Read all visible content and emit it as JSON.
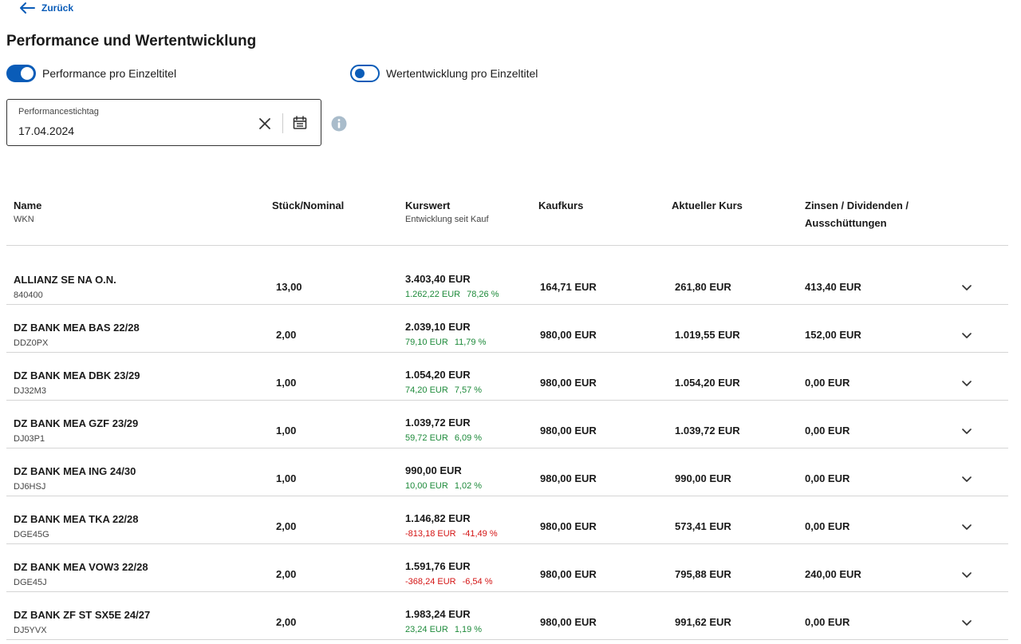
{
  "nav": {
    "back_label": "Zurück"
  },
  "page_title": "Performance und Wertentwicklung",
  "toggles": [
    {
      "label": "Performance pro Einzeltitel",
      "state": "on"
    },
    {
      "label": "Wertentwicklung pro Einzeltitel",
      "state": "off"
    }
  ],
  "date_field": {
    "label": "Performancestichtag",
    "value": "17.04.2024"
  },
  "icons": {
    "back": "arrow-left-icon",
    "clear": "close-icon",
    "calendar": "calendar-icon",
    "info": "info-icon",
    "expand": "chevron-down-icon"
  },
  "colors": {
    "accent": "#0a5cb8",
    "positive": "#1d8a3a",
    "negative": "#d41414",
    "info": "#a9bccb"
  },
  "table": {
    "headers": {
      "name": "Name",
      "name_sub": "WKN",
      "qty": "Stück/Nominal",
      "kurswert": "Kurswert",
      "kurswert_sub": "Entwicklung seit Kauf",
      "kaufkurs": "Kaufkurs",
      "aktueller_kurs": "Aktueller Kurs",
      "zinsen_line1": "Zinsen / Dividenden /",
      "zinsen_line2": "Ausschüttungen"
    },
    "rows": [
      {
        "name": "ALLIANZ SE NA O.N.",
        "wkn": "840400",
        "qty": "13,00",
        "kurswert": "3.403,40 EUR",
        "dev_abs": "1.262,22 EUR",
        "dev_pct": "78,26 %",
        "trend": "pos",
        "kaufkurs": "164,71 EUR",
        "aktuell": "261,80 EUR",
        "zinsen": "413,40 EUR"
      },
      {
        "name": "DZ BANK MEA BAS 22/28",
        "wkn": "DDZ0PX",
        "qty": "2,00",
        "kurswert": "2.039,10 EUR",
        "dev_abs": "79,10 EUR",
        "dev_pct": "11,79 %",
        "trend": "pos",
        "kaufkurs": "980,00 EUR",
        "aktuell": "1.019,55 EUR",
        "zinsen": "152,00 EUR"
      },
      {
        "name": "DZ BANK MEA DBK 23/29",
        "wkn": "DJ32M3",
        "qty": "1,00",
        "kurswert": "1.054,20 EUR",
        "dev_abs": "74,20 EUR",
        "dev_pct": "7,57 %",
        "trend": "pos",
        "kaufkurs": "980,00 EUR",
        "aktuell": "1.054,20 EUR",
        "zinsen": "0,00 EUR"
      },
      {
        "name": "DZ BANK MEA GZF 23/29",
        "wkn": "DJ03P1",
        "qty": "1,00",
        "kurswert": "1.039,72 EUR",
        "dev_abs": "59,72 EUR",
        "dev_pct": "6,09 %",
        "trend": "pos",
        "kaufkurs": "980,00 EUR",
        "aktuell": "1.039,72 EUR",
        "zinsen": "0,00 EUR"
      },
      {
        "name": "DZ BANK MEA ING 24/30",
        "wkn": "DJ6HSJ",
        "qty": "1,00",
        "kurswert": "990,00 EUR",
        "dev_abs": "10,00 EUR",
        "dev_pct": "1,02 %",
        "trend": "pos",
        "kaufkurs": "980,00 EUR",
        "aktuell": "990,00 EUR",
        "zinsen": "0,00 EUR"
      },
      {
        "name": "DZ BANK MEA TKA 22/28",
        "wkn": "DGE45G",
        "qty": "2,00",
        "kurswert": "1.146,82 EUR",
        "dev_abs": "-813,18 EUR",
        "dev_pct": "-41,49 %",
        "trend": "neg",
        "kaufkurs": "980,00 EUR",
        "aktuell": "573,41 EUR",
        "zinsen": "0,00 EUR"
      },
      {
        "name": "DZ BANK MEA VOW3 22/28",
        "wkn": "DGE45J",
        "qty": "2,00",
        "kurswert": "1.591,76 EUR",
        "dev_abs": "-368,24 EUR",
        "dev_pct": "-6,54 %",
        "trend": "neg",
        "kaufkurs": "980,00 EUR",
        "aktuell": "795,88 EUR",
        "zinsen": "240,00 EUR"
      },
      {
        "name": "DZ BANK ZF ST SX5E 24/27",
        "wkn": "DJ5YVX",
        "qty": "2,00",
        "kurswert": "1.983,24 EUR",
        "dev_abs": "23,24 EUR",
        "dev_pct": "1,19 %",
        "trend": "pos",
        "kaufkurs": "980,00 EUR",
        "aktuell": "991,62 EUR",
        "zinsen": "0,00 EUR"
      }
    ]
  }
}
